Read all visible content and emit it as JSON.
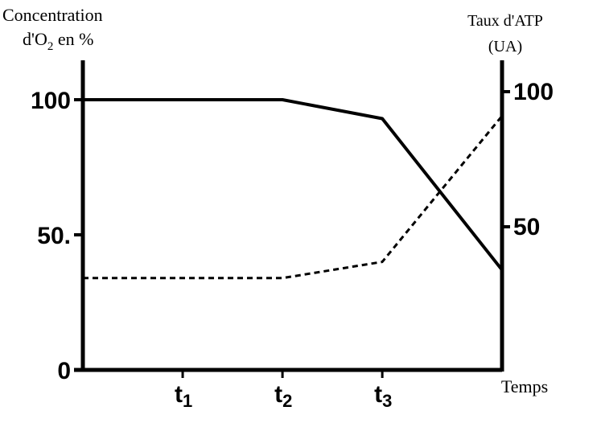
{
  "chart_data": {
    "type": "line",
    "y_left_label_line1": "Concentration",
    "y_left_label_line2_prefix": "d'O",
    "y_left_label_line2_sub": "2",
    "y_left_label_line2_suffix": " en %",
    "y_right_label_line1": "Taux d'ATP",
    "y_right_label_line2": "(UA)",
    "x_label": "Temps",
    "x_ticks": [
      {
        "main": "t",
        "sub": "1"
      },
      {
        "main": "t",
        "sub": "2"
      },
      {
        "main": "t",
        "sub": "3"
      }
    ],
    "y_left_ticks": [
      "0",
      "50.",
      "100"
    ],
    "y_right_ticks": [
      "50",
      "100"
    ],
    "y_left_range": [
      0,
      100
    ],
    "y_right_range": [
      0,
      100
    ],
    "x_range": [
      0,
      4.2
    ],
    "grid": false,
    "series": [
      {
        "style": "solid",
        "axis": "left",
        "color": "#000000",
        "points": [
          [
            0,
            100
          ],
          [
            2,
            100
          ],
          [
            3,
            93
          ],
          [
            4.2,
            37
          ]
        ]
      },
      {
        "style": "dashed",
        "axis": "right",
        "color": "#000000",
        "points": [
          [
            0,
            34
          ],
          [
            2,
            34
          ],
          [
            3,
            40
          ],
          [
            4.2,
            94
          ]
        ]
      }
    ]
  }
}
